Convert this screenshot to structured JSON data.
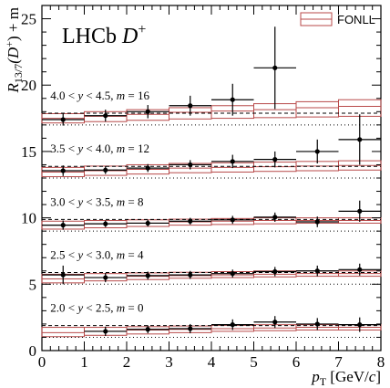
{
  "chart_data": {
    "type": "scatter",
    "experiment": "LHCb",
    "particle": "D",
    "particle_sup": "+",
    "legend": {
      "label": "FONLL",
      "color": "#b84a4a",
      "placement": "top-right"
    },
    "xlabel_main": "p",
    "xlabel_sub": "T",
    "xlabel_unit_pre": " [GeV/",
    "xlabel_unit_var": "c",
    "xlabel_unit_post": "]",
    "ylabel_main": "R",
    "ylabel_sub": "13/7",
    "ylabel_paren": "(D",
    "ylabel_sup": "+",
    "ylabel_end": ") + m",
    "xlim": [
      0,
      8
    ],
    "ylim": [
      0,
      26
    ],
    "xticks": [
      "0",
      "1",
      "2",
      "3",
      "4",
      "5",
      "6",
      "7",
      "8"
    ],
    "yticks": [
      "0",
      "5",
      "10",
      "15",
      "20",
      "25"
    ],
    "data_color": "#000000",
    "series": [
      {
        "name": "2.0 < y < 2.5, m = 0",
        "label": "2.0 < y < 2.5, m = 0",
        "offset": 0,
        "reference": 1.88,
        "unity": 1.0,
        "points": [
          {
            "x": 1.5,
            "xerr": 0.5,
            "y": 1.45,
            "yerr": 0.35
          },
          {
            "x": 2.5,
            "xerr": 0.5,
            "y": 1.6,
            "yerr": 0.3
          },
          {
            "x": 3.5,
            "xerr": 0.5,
            "y": 1.65,
            "yerr": 0.35
          },
          {
            "x": 4.5,
            "xerr": 0.5,
            "y": 1.95,
            "yerr": 0.4
          },
          {
            "x": 5.5,
            "xerr": 0.5,
            "y": 2.15,
            "yerr": 0.45
          },
          {
            "x": 6.5,
            "xerr": 0.5,
            "y": 2.0,
            "yerr": 0.45
          },
          {
            "x": 7.5,
            "xerr": 0.5,
            "y": 1.95,
            "yerr": 0.55
          }
        ],
        "fonll_bins": [
          0,
          1,
          2,
          3,
          4,
          5,
          6,
          7,
          8
        ],
        "fonll_lo": [
          1.05,
          1.15,
          1.25,
          1.35,
          1.45,
          1.5,
          1.55,
          1.55
        ],
        "fonll_mid": [
          1.35,
          1.45,
          1.55,
          1.6,
          1.65,
          1.7,
          1.75,
          1.75
        ],
        "fonll_hi": [
          1.75,
          1.75,
          1.8,
          1.85,
          1.9,
          1.95,
          1.95,
          1.95
        ]
      },
      {
        "name": "2.5 < y < 3.0, m = 4",
        "label": "2.5 < y < 3.0, m = 4",
        "offset": 4,
        "reference": 5.88,
        "unity": 5.0,
        "points": [
          {
            "x": 0.5,
            "xerr": 0.5,
            "y": 5.7,
            "yerr": 0.7
          },
          {
            "x": 1.5,
            "xerr": 0.5,
            "y": 5.5,
            "yerr": 0.35
          },
          {
            "x": 2.5,
            "xerr": 0.5,
            "y": 5.65,
            "yerr": 0.3
          },
          {
            "x": 3.5,
            "xerr": 0.5,
            "y": 5.7,
            "yerr": 0.3
          },
          {
            "x": 4.5,
            "xerr": 0.5,
            "y": 5.8,
            "yerr": 0.3
          },
          {
            "x": 5.5,
            "xerr": 0.5,
            "y": 5.95,
            "yerr": 0.35
          },
          {
            "x": 6.5,
            "xerr": 0.5,
            "y": 6.0,
            "yerr": 0.4
          },
          {
            "x": 7.5,
            "xerr": 0.5,
            "y": 6.1,
            "yerr": 0.45
          }
        ],
        "fonll_bins": [
          0,
          1,
          2,
          3,
          4,
          5,
          6,
          7,
          8
        ],
        "fonll_lo": [
          5.1,
          5.25,
          5.35,
          5.45,
          5.5,
          5.55,
          5.6,
          5.6
        ],
        "fonll_mid": [
          5.4,
          5.5,
          5.6,
          5.65,
          5.7,
          5.75,
          5.8,
          5.8
        ],
        "fonll_hi": [
          5.75,
          5.8,
          5.85,
          5.9,
          5.95,
          6.0,
          6.0,
          6.0
        ]
      },
      {
        "name": "3.0 < y < 3.5, m = 8",
        "label": "3.0 < y < 3.5, m = 8",
        "offset": 8,
        "reference": 9.88,
        "unity": 9.0,
        "points": [
          {
            "x": 0.5,
            "xerr": 0.5,
            "y": 9.45,
            "yerr": 0.35
          },
          {
            "x": 1.5,
            "xerr": 0.5,
            "y": 9.55,
            "yerr": 0.25
          },
          {
            "x": 2.5,
            "xerr": 0.5,
            "y": 9.6,
            "yerr": 0.25
          },
          {
            "x": 3.5,
            "xerr": 0.5,
            "y": 9.75,
            "yerr": 0.25
          },
          {
            "x": 4.5,
            "xerr": 0.5,
            "y": 9.85,
            "yerr": 0.3
          },
          {
            "x": 5.5,
            "xerr": 0.5,
            "y": 10.05,
            "yerr": 0.35
          },
          {
            "x": 6.5,
            "xerr": 0.5,
            "y": 9.7,
            "yerr": 0.4
          },
          {
            "x": 7.5,
            "xerr": 0.5,
            "y": 10.5,
            "yerr": 0.8
          }
        ],
        "fonll_bins": [
          0,
          1,
          2,
          3,
          4,
          5,
          6,
          7,
          8
        ],
        "fonll_lo": [
          9.15,
          9.25,
          9.35,
          9.45,
          9.5,
          9.55,
          9.6,
          9.6
        ],
        "fonll_mid": [
          9.45,
          9.55,
          9.6,
          9.7,
          9.75,
          9.8,
          9.8,
          9.8
        ],
        "fonll_hi": [
          9.75,
          9.8,
          9.85,
          9.9,
          9.95,
          10.0,
          10.0,
          10.0
        ]
      },
      {
        "name": "3.5 < y < 4.0, m = 12",
        "label": "3.5 < y < 4.0, m = 12",
        "offset": 12,
        "reference": 13.88,
        "unity": 13.0,
        "points": [
          {
            "x": 0.5,
            "xerr": 0.5,
            "y": 13.55,
            "yerr": 0.4
          },
          {
            "x": 1.5,
            "xerr": 0.5,
            "y": 13.6,
            "yerr": 0.3
          },
          {
            "x": 2.5,
            "xerr": 0.5,
            "y": 13.75,
            "yerr": 0.3
          },
          {
            "x": 3.5,
            "xerr": 0.5,
            "y": 14.0,
            "yerr": 0.35
          },
          {
            "x": 4.5,
            "xerr": 0.5,
            "y": 14.25,
            "yerr": 0.5
          },
          {
            "x": 5.5,
            "xerr": 0.5,
            "y": 14.4,
            "yerr": 0.6
          },
          {
            "x": 6.5,
            "xerr": 0.5,
            "y": 15.0,
            "yerr": 0.9
          },
          {
            "x": 7.5,
            "xerr": 0.5,
            "y": 15.9,
            "yerr": 1.9
          }
        ],
        "fonll_bins": [
          0,
          1,
          2,
          3,
          4,
          5,
          6,
          7,
          8
        ],
        "fonll_lo": [
          13.1,
          13.2,
          13.3,
          13.4,
          13.45,
          13.5,
          13.55,
          13.6
        ],
        "fonll_mid": [
          13.45,
          13.55,
          13.65,
          13.75,
          13.8,
          13.85,
          13.9,
          13.95
        ],
        "fonll_hi": [
          13.8,
          13.9,
          14.0,
          14.1,
          14.15,
          14.2,
          14.25,
          14.3
        ]
      },
      {
        "name": "4.0 < y < 4.5, m = 16",
        "label": "4.0 < y < 4.5, m = 16",
        "offset": 16,
        "reference": 17.88,
        "unity": 17.0,
        "points": [
          {
            "x": 0.5,
            "xerr": 0.5,
            "y": 17.4,
            "yerr": 0.45
          },
          {
            "x": 1.5,
            "xerr": 0.5,
            "y": 17.7,
            "yerr": 0.45
          },
          {
            "x": 2.5,
            "xerr": 0.5,
            "y": 18.0,
            "yerr": 0.5
          },
          {
            "x": 3.5,
            "xerr": 0.5,
            "y": 18.45,
            "yerr": 0.75
          },
          {
            "x": 4.5,
            "xerr": 0.5,
            "y": 18.9,
            "yerr": 1.2
          },
          {
            "x": 5.5,
            "xerr": 0.5,
            "y": 21.3,
            "yerr": 3.1
          }
        ],
        "fonll_bins": [
          0,
          1,
          2,
          3,
          4,
          5,
          6,
          7,
          8
        ],
        "fonll_lo": [
          17.15,
          17.25,
          17.35,
          17.45,
          17.5,
          17.55,
          17.6,
          17.65
        ],
        "fonll_mid": [
          17.5,
          17.65,
          17.8,
          17.95,
          18.05,
          18.15,
          18.3,
          18.4
        ],
        "fonll_hi": [
          17.85,
          18.0,
          18.15,
          18.3,
          18.45,
          18.6,
          18.75,
          18.9
        ]
      }
    ]
  }
}
